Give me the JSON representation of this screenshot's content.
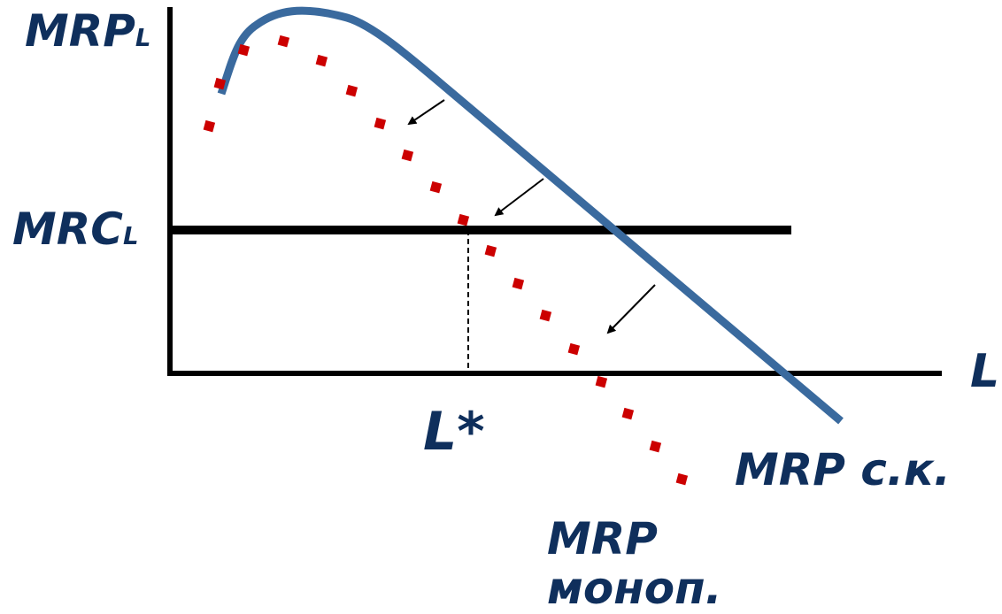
{
  "labels": {
    "y_axis_main": "MRP",
    "y_axis_sub": "L",
    "mrc_main": "MRC",
    "mrc_sub": "L",
    "x_axis": "L",
    "equilibrium": "L*",
    "curve_competitive": "MRP с.к.",
    "curve_monopoly_line1": "MRP",
    "curve_monopoly_line2": "моноп."
  },
  "colors": {
    "text": "#0f2f5c",
    "competitive_curve": "#3a6a9e",
    "monopoly_curve": "#cc0000",
    "axes": "#000000"
  }
}
